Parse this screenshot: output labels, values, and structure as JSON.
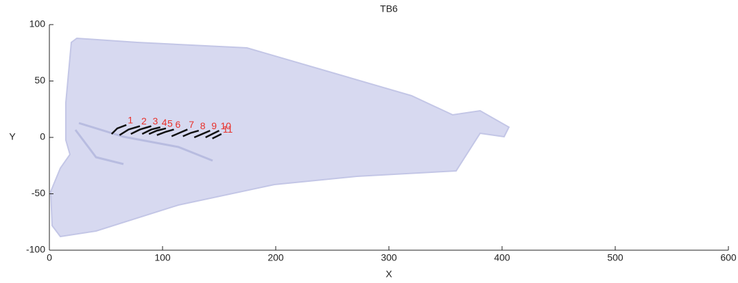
{
  "chart_data": {
    "type": "line",
    "title": "TB6",
    "x_label": "X",
    "y_label": "Y",
    "xlim": [
      0,
      600
    ],
    "xticks": [
      0,
      100,
      200,
      300,
      400,
      500,
      600
    ],
    "ylim": [
      -100,
      100
    ],
    "yticks": [
      -100,
      -50,
      0,
      50,
      100
    ],
    "line_color": "#111111",
    "label_color": "#e8302a",
    "series": [
      {
        "name": "1",
        "x": [
          55,
          60,
          68
        ],
        "y": [
          3,
          8,
          11
        ]
      },
      {
        "name": "2",
        "x": [
          62,
          70,
          80
        ],
        "y": [
          2,
          7,
          10
        ]
      },
      {
        "name": "3",
        "x": [
          72,
          80,
          90
        ],
        "y": [
          3,
          7,
          10
        ]
      },
      {
        "name": "4",
        "x": [
          82,
          90,
          98
        ],
        "y": [
          3,
          7,
          9
        ]
      },
      {
        "name": "5",
        "x": [
          88,
          95,
          103
        ],
        "y": [
          3,
          6,
          8
        ]
      },
      {
        "name": "6",
        "x": [
          95,
          103,
          110
        ],
        "y": [
          2,
          5,
          7
        ]
      },
      {
        "name": "7",
        "x": [
          108,
          115,
          122
        ],
        "y": [
          1,
          4,
          7
        ]
      },
      {
        "name": "8",
        "x": [
          118,
          125,
          132
        ],
        "y": [
          1,
          4,
          6
        ]
      },
      {
        "name": "9",
        "x": [
          128,
          135,
          142
        ],
        "y": [
          0,
          3,
          6
        ]
      },
      {
        "name": "10",
        "x": [
          138,
          144,
          150
        ],
        "y": [
          0,
          3,
          6
        ]
      },
      {
        "name": "11",
        "x": [
          144,
          148,
          152
        ],
        "y": [
          -1,
          1,
          3
        ]
      }
    ]
  }
}
